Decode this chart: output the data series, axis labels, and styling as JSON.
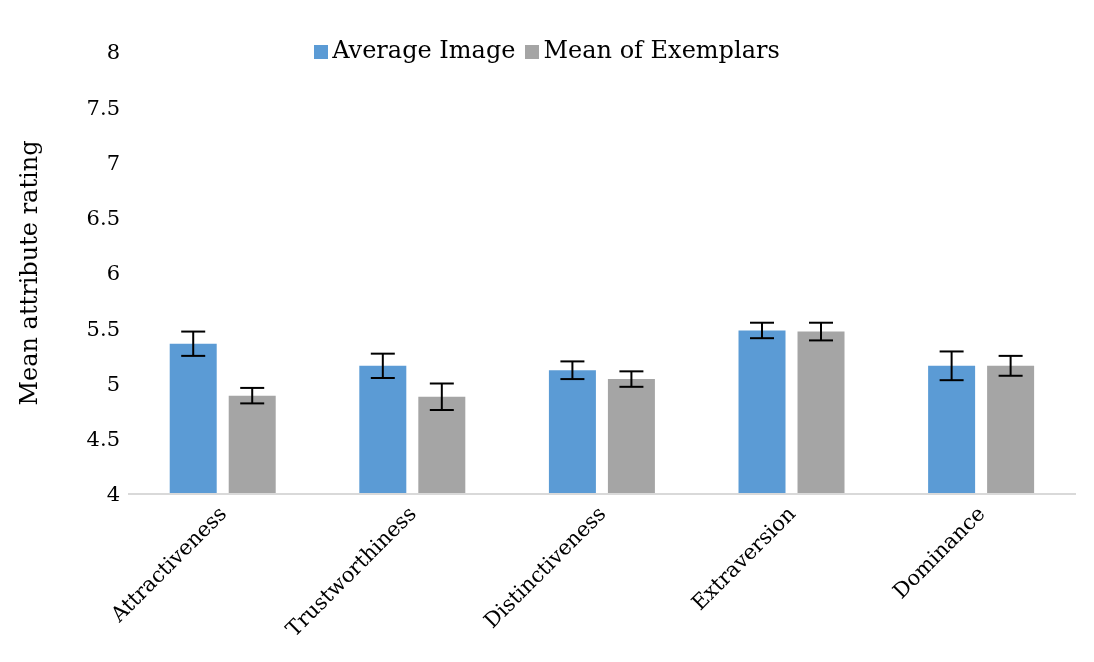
{
  "chart_data": {
    "type": "bar",
    "ylabel": "Mean attribute rating",
    "categories": [
      "Attractiveness",
      "Trustworthiness",
      "Distinctiveness",
      "Extraversion",
      "Dominance"
    ],
    "series": [
      {
        "name": "Average Image",
        "color": "#5b9bd5",
        "values": [
          5.36,
          5.16,
          5.12,
          5.48,
          5.16
        ],
        "errors": [
          0.11,
          0.11,
          0.08,
          0.07,
          0.13
        ]
      },
      {
        "name": "Mean of Exemplars",
        "color": "#a5a5a5",
        "values": [
          4.89,
          4.88,
          5.04,
          5.47,
          5.16
        ],
        "errors": [
          0.07,
          0.12,
          0.07,
          0.08,
          0.09
        ]
      }
    ],
    "ylim": [
      4,
      8
    ],
    "yticks": [
      4,
      4.5,
      5,
      5.5,
      6,
      6.5,
      7,
      7.5,
      8
    ],
    "legend": "top"
  }
}
